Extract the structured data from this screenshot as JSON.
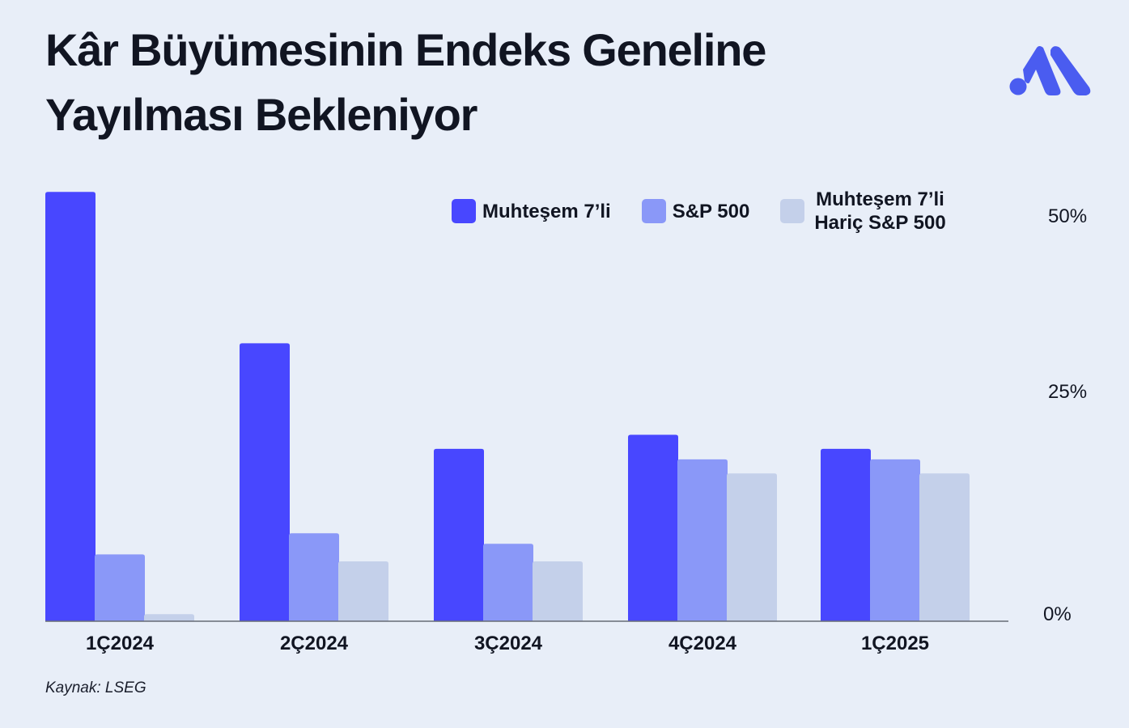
{
  "title": "Kâr Büyümesinin Endeks Geneline Yayılması Bekleniyor",
  "logo": "brand-logo",
  "source": "Kaynak: LSEG",
  "colors": {
    "background": "#e8eef8",
    "series1": "#4847ff",
    "series2": "#8a98f8",
    "series3": "#c4d0ea",
    "logo": "#4a5cf0"
  },
  "chart_data": {
    "type": "bar",
    "categories": [
      "1Ç2024",
      "2Ç2024",
      "3Ç2024",
      "4Ç2024",
      "1Ç2025"
    ],
    "series": [
      {
        "name": "Muhteşem 7’li",
        "values": [
          61,
          39.5,
          24.5,
          26.5,
          24.5
        ]
      },
      {
        "name": "S&P 500",
        "values": [
          9.5,
          12.5,
          11,
          23,
          23
        ]
      },
      {
        "name": "Muhteşem 7’li\nHariç S&P 500",
        "values": [
          1,
          8.5,
          8.5,
          21,
          21
        ]
      }
    ],
    "y_ticks": [
      {
        "value": 0,
        "label": "0%"
      },
      {
        "value": 25,
        "label": "25%"
      },
      {
        "value": 50,
        "label": "50%"
      }
    ],
    "ylim": [
      0,
      61
    ],
    "y_axis_position": "right",
    "grid": false,
    "legend_position": "top-right",
    "title": "",
    "xlabel": "",
    "ylabel": ""
  }
}
